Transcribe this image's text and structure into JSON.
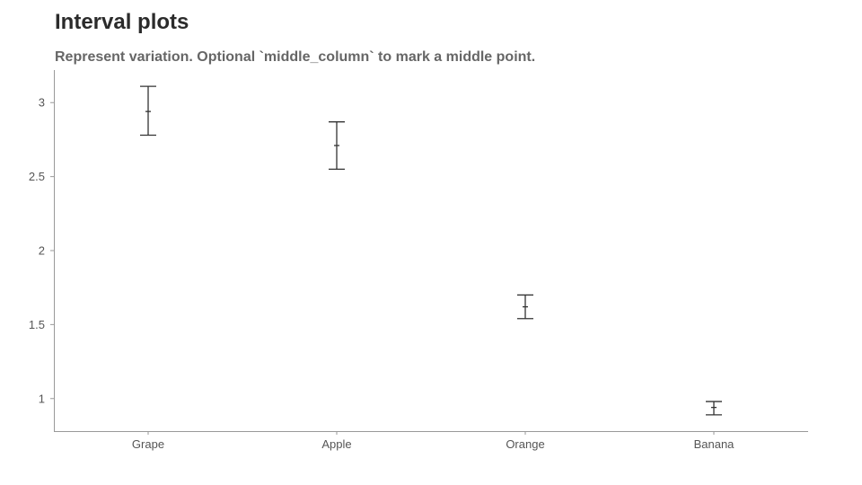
{
  "chart_data": {
    "type": "interval",
    "title": "Interval plots",
    "subtitle": "Represent variation. Optional `middle_column` to mark a middle point.",
    "xlabel": "",
    "ylabel": "",
    "categories": [
      "Grape",
      "Apple",
      "Orange",
      "Banana"
    ],
    "low": [
      2.78,
      2.55,
      1.54,
      0.89
    ],
    "middle": [
      2.94,
      2.71,
      1.62,
      0.94
    ],
    "high": [
      3.11,
      2.87,
      1.7,
      0.98
    ],
    "ylim": [
      0.78,
      3.22
    ],
    "yticks": [
      1,
      1.5,
      2,
      2.5,
      3
    ],
    "ytick_labels": [
      "1",
      "1.5",
      "2",
      "2.5",
      "3"
    ],
    "grid": false,
    "colors": {
      "interval": "#333333",
      "axis": "#999999",
      "text": "#555555"
    }
  }
}
